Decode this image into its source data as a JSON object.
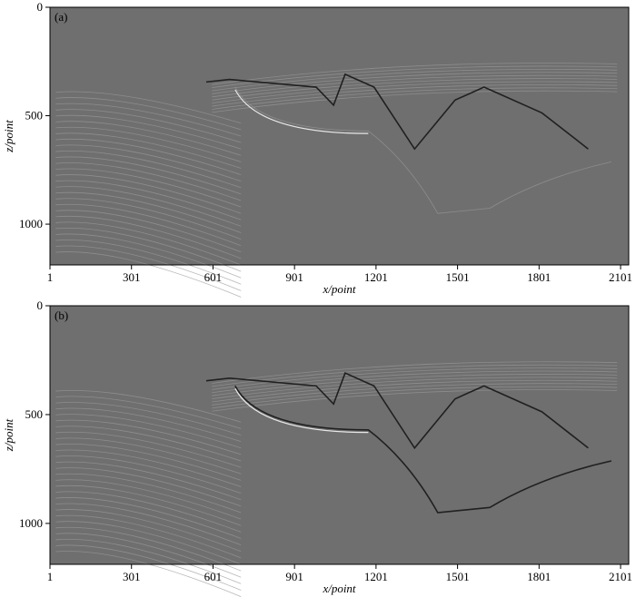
{
  "chart_data": [
    {
      "type": "image",
      "panel_label": "(a)",
      "x_label": "x/point",
      "y_label": "z/point",
      "xlim": [
        1,
        2131
      ],
      "xticks": [
        1,
        301,
        601,
        901,
        1201,
        1501,
        1801,
        2101
      ],
      "ylim": [
        0,
        1188
      ],
      "yticks": [
        0,
        500,
        1000
      ]
    },
    {
      "type": "image",
      "panel_label": "(b)",
      "x_label": "x/point",
      "y_label": "z/point",
      "xlim": [
        1,
        2131
      ],
      "xticks": [
        1,
        301,
        601,
        901,
        1201,
        1501,
        1801,
        2101
      ],
      "ylim": [
        0,
        1188
      ],
      "yticks": [
        0,
        500,
        1000
      ]
    }
  ]
}
